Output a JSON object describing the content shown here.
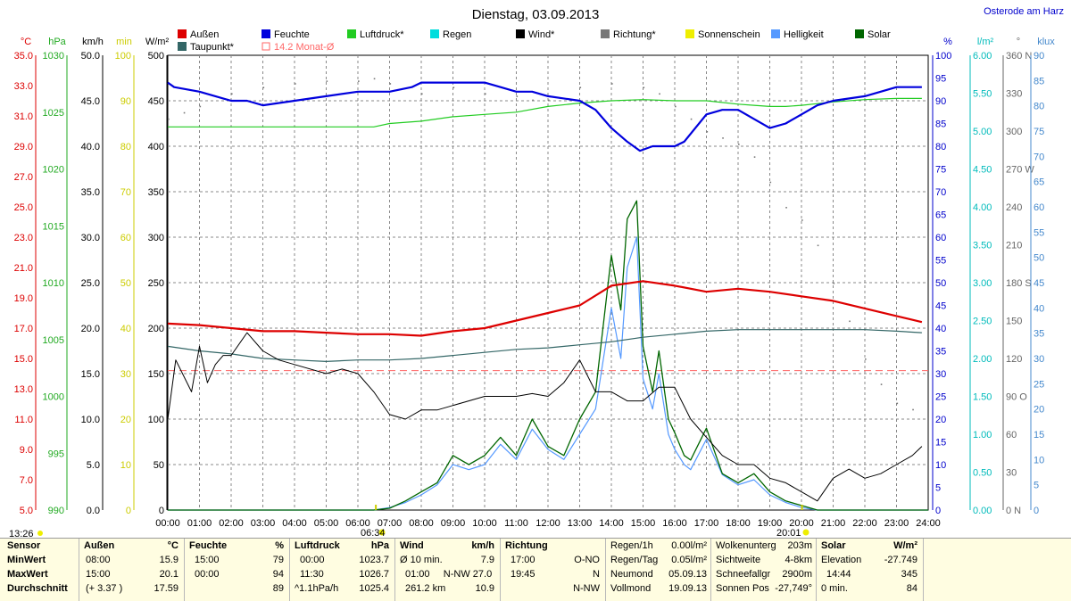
{
  "title": "Dienstag, 03.09.2013",
  "station": "Osterode am Harz",
  "status_time": "13:26",
  "legend": [
    {
      "label": "Außen",
      "color": "#dd0000"
    },
    {
      "label": "Feuchte",
      "color": "#0000dd"
    },
    {
      "label": "Luftdruck*",
      "color": "#22cc22"
    },
    {
      "label": "Regen",
      "color": "#00dddd"
    },
    {
      "label": "Wind*",
      "color": "#000000"
    },
    {
      "label": "Richtung*",
      "color": "#777777"
    },
    {
      "label": "Sonnenschein",
      "color": "#eeee00"
    },
    {
      "label": "Helligkeit",
      "color": "#5599ff"
    },
    {
      "label": "Solar",
      "color": "#006600"
    },
    {
      "label": "Taupunkt*",
      "color": "#336666"
    },
    {
      "label": "14.2 Monat-Ø",
      "color": "#ff6666",
      "outline": true
    }
  ],
  "axes": {
    "temp": {
      "unit": "°C",
      "color": "#dd0000",
      "ticks": [
        "35.0",
        "33.0",
        "31.0",
        "29.0",
        "27.0",
        "25.0",
        "23.0",
        "21.0",
        "19.0",
        "17.0",
        "15.0",
        "13.0",
        "11.0",
        "9.0",
        "7.0",
        "5.0"
      ]
    },
    "pressure": {
      "unit": "hPa",
      "color": "#22aa22",
      "ticks": [
        "1030",
        "1025",
        "1020",
        "1015",
        "1010",
        "1005",
        "1000",
        "995",
        "990"
      ]
    },
    "wind": {
      "unit": "km/h",
      "color": "#000000",
      "ticks": [
        "50.0",
        "45.0",
        "40.0",
        "35.0",
        "30.0",
        "25.0",
        "20.0",
        "15.0",
        "10.0",
        "5.0",
        "0.0"
      ]
    },
    "minutes": {
      "unit": "min",
      "color": "#cccc00",
      "ticks": [
        "100",
        "90",
        "80",
        "70",
        "60",
        "50",
        "40",
        "30",
        "20",
        "10",
        "0"
      ]
    },
    "solar": {
      "unit": "W/m²",
      "color": "#000000",
      "ticks": [
        "500",
        "450",
        "400",
        "350",
        "300",
        "250",
        "200",
        "150",
        "100",
        "50",
        "0"
      ]
    },
    "humidity": {
      "unit": "%",
      "color": "#0000cc",
      "ticks": [
        "100",
        "95",
        "90",
        "85",
        "80",
        "75",
        "70",
        "65",
        "60",
        "55",
        "50",
        "45",
        "40",
        "35",
        "30",
        "25",
        "20",
        "15",
        "10",
        "5",
        "0"
      ]
    },
    "rain": {
      "unit": "l/m²",
      "color": "#00bbbb",
      "ticks": [
        "6.00",
        "5.50",
        "5.00",
        "4.50",
        "4.00",
        "3.50",
        "3.00",
        "2.50",
        "2.00",
        "1.50",
        "1.00",
        "0.50",
        "0.00"
      ]
    },
    "direction": {
      "unit": "°",
      "color": "#666666",
      "ticks": [
        "360 N",
        "330",
        "300",
        "270 W",
        "240",
        "210",
        "180 S",
        "150",
        "120",
        "90 O",
        "60",
        "30",
        "0 N"
      ]
    },
    "lux": {
      "unit": "klux",
      "color": "#4488cc",
      "ticks": [
        "90",
        "85",
        "80",
        "75",
        "70",
        "65",
        "60",
        "55",
        "50",
        "45",
        "40",
        "35",
        "30",
        "25",
        "20",
        "15",
        "10",
        "5",
        "0"
      ]
    },
    "time": {
      "ticks": [
        "00:00",
        "01:00",
        "02:00",
        "03:00",
        "04:00",
        "05:00",
        "06:00",
        "07:00",
        "08:00",
        "09:00",
        "10:00",
        "11:00",
        "12:00",
        "13:00",
        "14:00",
        "15:00",
        "16:00",
        "17:00",
        "18:00",
        "19:00",
        "20:00",
        "21:00",
        "22:00",
        "23:00",
        "24:00"
      ]
    }
  },
  "sunrise": "06:34",
  "sunset": "20:01",
  "chart_data": {
    "type": "line",
    "x_unit": "hour of day",
    "x_range": [
      0,
      24
    ],
    "monthly_average_temp": 14.2,
    "series": [
      {
        "name": "Außen",
        "unit": "°C",
        "x": [
          0,
          1,
          2,
          3,
          4,
          5,
          6,
          7,
          8,
          9,
          10,
          11,
          12,
          13,
          14,
          15,
          16,
          17,
          18,
          19,
          20,
          21,
          22,
          23,
          23.8
        ],
        "y": [
          17.3,
          17.2,
          17.0,
          16.8,
          16.8,
          16.7,
          16.6,
          16.6,
          16.5,
          16.8,
          17.0,
          17.5,
          18.0,
          18.5,
          19.8,
          20.1,
          19.8,
          19.4,
          19.6,
          19.4,
          19.1,
          18.8,
          18.3,
          17.8,
          17.4
        ]
      },
      {
        "name": "Feuchte",
        "unit": "%",
        "x": [
          0,
          0.2,
          1,
          1.5,
          2,
          2.5,
          3,
          4,
          5,
          6,
          7,
          7.7,
          8,
          9,
          10,
          10.5,
          11,
          11.5,
          12,
          13,
          13.5,
          14,
          14.5,
          14.9,
          15.3,
          15.7,
          16,
          16.3,
          17,
          17.5,
          18,
          18.5,
          19,
          19.5,
          20,
          20.5,
          21,
          22,
          22.5,
          23,
          23.8
        ],
        "y": [
          94,
          93,
          92,
          91,
          90,
          90,
          89,
          90,
          91,
          92,
          92,
          93,
          94,
          94,
          94,
          93,
          92,
          92,
          91,
          90,
          88,
          84,
          81,
          79,
          80,
          80,
          80,
          81,
          87,
          88,
          88,
          86,
          84,
          85,
          87,
          89,
          90,
          91,
          92,
          93,
          93
        ]
      },
      {
        "name": "Luftdruck",
        "unit": "hPa",
        "x": [
          0,
          2,
          4,
          6,
          6.5,
          7,
          8,
          9,
          10,
          11,
          12,
          13,
          14,
          15,
          16,
          17,
          18,
          18.5,
          19,
          19.5,
          20,
          21,
          22,
          23,
          23.8
        ],
        "y": [
          1023.7,
          1023.7,
          1023.7,
          1023.7,
          1023.7,
          1024.0,
          1024.2,
          1024.6,
          1024.8,
          1025.0,
          1025.5,
          1025.8,
          1026.0,
          1026.1,
          1026.0,
          1026.0,
          1025.7,
          1025.6,
          1025.5,
          1025.5,
          1025.6,
          1025.9,
          1026.1,
          1026.2,
          1026.2
        ]
      },
      {
        "name": "Wind",
        "unit": "km/h",
        "x": [
          0,
          0.25,
          0.75,
          1,
          1.25,
          1.5,
          1.75,
          2,
          2.5,
          3,
          3.5,
          4,
          5,
          5.5,
          6,
          6.5,
          7,
          7.5,
          8,
          8.5,
          9,
          10,
          10.5,
          11,
          11.5,
          12,
          12.5,
          13,
          13.5,
          14,
          14.5,
          15,
          15.5,
          16,
          16.5,
          17,
          17.5,
          18,
          18.5,
          19,
          19.5,
          20,
          20.5,
          21,
          21.5,
          22,
          22.5,
          23,
          23.5,
          23.8
        ],
        "y": [
          10.0,
          16.5,
          13.0,
          18.0,
          14.0,
          16.0,
          17.0,
          17.0,
          19.5,
          17.5,
          16.5,
          16.0,
          15.0,
          15.5,
          15.0,
          13.0,
          10.5,
          10.0,
          11.0,
          11.0,
          11.5,
          12.5,
          12.5,
          12.5,
          12.8,
          12.5,
          14.0,
          16.5,
          13.0,
          13.0,
          12.0,
          12.0,
          13.5,
          13.5,
          10.0,
          8.0,
          6.0,
          5.0,
          5.0,
          3.5,
          3.0,
          2.0,
          1.0,
          3.5,
          4.5,
          3.5,
          4.0,
          5.0,
          6.0,
          7.0
        ]
      },
      {
        "name": "Solar",
        "unit": "W/m²",
        "x": [
          0,
          6.5,
          7,
          7.5,
          8,
          8.5,
          9,
          9.5,
          10,
          10.5,
          11,
          11.5,
          12,
          12.5,
          13,
          13.5,
          14,
          14.3,
          14.5,
          14.8,
          15,
          15.3,
          15.5,
          15.8,
          16,
          16.3,
          16.5,
          17,
          17.5,
          18,
          18.5,
          19,
          19.5,
          20,
          20.5,
          21,
          24
        ],
        "y": [
          0,
          0,
          2,
          10,
          20,
          30,
          60,
          50,
          60,
          80,
          60,
          100,
          70,
          60,
          100,
          130,
          280,
          220,
          320,
          340,
          180,
          130,
          175,
          100,
          85,
          60,
          55,
          90,
          40,
          30,
          40,
          20,
          10,
          5,
          0,
          0,
          0
        ]
      },
      {
        "name": "Helligkeit",
        "unit": "klux",
        "x": [
          0,
          6.5,
          7,
          7.5,
          8,
          8.5,
          9,
          9.5,
          10,
          10.5,
          11,
          11.5,
          12,
          12.5,
          13,
          13.5,
          14,
          14.3,
          14.5,
          14.8,
          15,
          15.3,
          15.5,
          15.8,
          16,
          16.3,
          16.5,
          17,
          17.5,
          18,
          18.5,
          19,
          19.5,
          20,
          20.5,
          21,
          24
        ],
        "y": [
          0,
          0,
          0.5,
          1.5,
          3,
          5,
          9,
          8,
          9,
          13,
          10,
          16,
          12,
          10,
          15,
          20,
          40,
          30,
          48,
          54,
          26,
          20,
          27,
          15,
          12,
          9,
          8,
          14,
          7,
          5,
          6,
          3,
          1.5,
          0.5,
          0,
          0,
          0
        ]
      },
      {
        "name": "Taupunkt",
        "unit": "°C",
        "x": [
          0,
          1,
          2,
          3,
          4,
          5,
          6,
          7,
          8,
          9,
          10,
          11,
          12,
          13,
          14,
          15,
          16,
          17,
          18,
          19,
          20,
          21,
          22,
          23,
          23.8
        ],
        "y": [
          15.8,
          15.5,
          15.3,
          15.0,
          14.9,
          14.8,
          14.9,
          14.9,
          15.0,
          15.2,
          15.4,
          15.6,
          15.7,
          15.9,
          16.1,
          16.4,
          16.6,
          16.8,
          16.9,
          16.9,
          16.9,
          16.9,
          16.9,
          16.8,
          16.7
        ]
      },
      {
        "name": "Richtung",
        "unit": "°",
        "x": [
          0,
          0.5,
          1,
          2,
          3,
          4,
          5,
          6,
          6.5,
          7,
          8,
          9,
          10,
          11,
          11.5,
          12,
          13,
          14,
          15,
          15.5,
          16,
          16.5,
          17,
          17.5,
          18,
          18.5,
          19,
          19.5,
          20,
          20.5,
          21,
          21.5,
          22,
          22.5,
          23,
          23.5
        ],
        "y": [
          310,
          315,
          320,
          330,
          335,
          338,
          340,
          340,
          342,
          338,
          330,
          335,
          330,
          328,
          325,
          325,
          335,
          338,
          335,
          330,
          320,
          310,
          300,
          295,
          290,
          280,
          260,
          240,
          230,
          210,
          180,
          150,
          120,
          100,
          85,
          80
        ]
      }
    ]
  },
  "footer": {
    "sensor": {
      "label": "Sensor",
      "rows": [
        "MinWert",
        "MaxWert",
        "Durchschnitt"
      ]
    },
    "aussen": {
      "label": "Außen",
      "unit": "°C",
      "rows": [
        [
          "08:00",
          "15.9"
        ],
        [
          "15:00",
          "20.1"
        ],
        [
          "(+ 3.37 )",
          "17.59"
        ]
      ]
    },
    "feuchte": {
      "label": "Feuchte",
      "unit": "%",
      "rows": [
        [
          "15:00",
          "79"
        ],
        [
          "00:00",
          "94"
        ],
        [
          "",
          "89"
        ]
      ]
    },
    "luftdruck": {
      "label": "Luftdruck",
      "unit": "hPa",
      "rows": [
        [
          "00:00",
          "1023.7"
        ],
        [
          "11:30",
          "1026.7"
        ],
        [
          "^1.1hPa/h",
          "1025.4"
        ]
      ]
    },
    "wind": {
      "label": "Wind",
      "unit": "km/h",
      "rows": [
        [
          "Ø 10 min.",
          "7.9"
        ],
        [
          "01:00     N-NW 27.0",
          ""
        ],
        [
          "261.2 km",
          "10.9"
        ]
      ]
    },
    "richtung": {
      "label": "Richtung",
      "rows": [
        [
          "17:00",
          "O-NO"
        ],
        [
          "19:45",
          "N"
        ],
        [
          "",
          "N-NW"
        ]
      ]
    },
    "regen": {
      "rows": [
        [
          "Regen/1h",
          "0.00l/m²"
        ],
        [
          "Regen/Tag",
          "0.05l/m²"
        ],
        [
          "Neumond",
          "05.09.13"
        ],
        [
          "Vollmond",
          "19.09.13"
        ]
      ]
    },
    "wolken": {
      "rows": [
        [
          "Wolkenunterg",
          "203m"
        ],
        [
          "Sichtweite",
          "4-8km"
        ],
        [
          "Schneefallgr",
          "2900m"
        ],
        [
          "Sonnen Pos",
          "-27,749°"
        ]
      ]
    },
    "solar": {
      "label": "Solar",
      "unit": "W/m²",
      "rows": [
        [
          "Elevation",
          "-27.749"
        ],
        [
          "14:44",
          "345"
        ],
        [
          "0 min.",
          "84"
        ]
      ]
    }
  }
}
